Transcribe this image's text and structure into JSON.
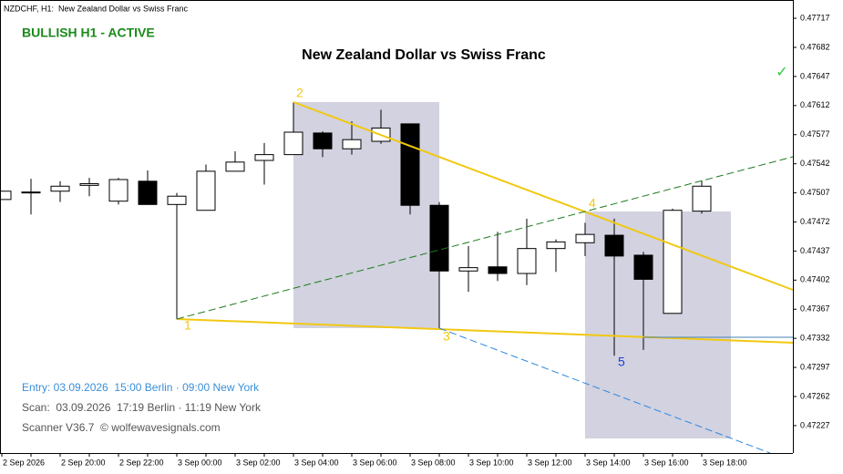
{
  "header": {
    "symbol_title": "NZDCHF, H1:  New Zealand Dollar vs Swiss Franc",
    "status": "BULLISH H1 - ACTIVE",
    "check": "✓"
  },
  "chart_data": {
    "type": "candlestick",
    "title": "New Zealand Dollar vs Swiss Franc",
    "categories": [
      "2 Sep 2026",
      null,
      "2 Sep 20:00",
      null,
      "2 Sep 22:00",
      null,
      "3 Sep 00:00",
      null,
      "3 Sep 02:00",
      null,
      "3 Sep 04:00",
      null,
      "3 Sep 06:00",
      null,
      "3 Sep 08:00",
      null,
      "3 Sep 10:00",
      null,
      "3 Sep 12:00",
      null,
      "3 Sep 14:00",
      null,
      "3 Sep 16:00",
      null,
      "3 Sep 18:00"
    ],
    "open": [
      0.47499,
      0.47508,
      0.47509,
      0.47516,
      0.47497,
      0.47521,
      0.47493,
      0.47486,
      0.47533,
      0.47546,
      0.47553,
      0.47579,
      0.4756,
      0.47569,
      0.4759,
      0.47492,
      0.47413,
      0.47418,
      0.4741,
      0.4744,
      0.47447,
      0.47456,
      0.47432,
      0.47362,
      0.47485
    ],
    "high": [
      0.47509,
      0.47524,
      0.47521,
      0.47525,
      0.47525,
      0.47534,
      0.47507,
      0.47541,
      0.47557,
      0.47567,
      0.47616,
      0.47581,
      0.47593,
      0.47607,
      0.4759,
      0.47496,
      0.47443,
      0.4746,
      0.47476,
      0.47451,
      0.47471,
      0.47476,
      0.47436,
      0.47488,
      0.47522
    ],
    "low": [
      0.47499,
      0.47481,
      0.47496,
      0.47503,
      0.47493,
      0.47493,
      0.47355,
      0.47486,
      0.47533,
      0.47517,
      0.47553,
      0.4755,
      0.47553,
      0.47566,
      0.47481,
      0.47344,
      0.47388,
      0.47401,
      0.47396,
      0.47412,
      0.47431,
      0.47311,
      0.47318,
      0.47362,
      0.47482
    ],
    "close": [
      0.47509,
      0.47508,
      0.47515,
      0.47518,
      0.47523,
      0.47493,
      0.47503,
      0.47533,
      0.47544,
      0.47553,
      0.4758,
      0.4756,
      0.47571,
      0.47585,
      0.47492,
      0.47413,
      0.47417,
      0.4741,
      0.4744,
      0.47448,
      0.47457,
      0.47431,
      0.47403,
      0.47486,
      0.47515
    ],
    "ylim": [
      0.47194,
      0.47739
    ],
    "yticks": [
      0.47717,
      0.47682,
      0.47647,
      0.47612,
      0.47577,
      0.47542,
      0.47507,
      0.47472,
      0.47437,
      0.47402,
      0.47367,
      0.47332,
      0.47297,
      0.47262,
      0.47227
    ],
    "up_color": "#ffffff",
    "down_color": "#000000"
  },
  "wave_labels": [
    "1",
    "2",
    "3",
    "4",
    "5"
  ],
  "footer": {
    "entry": "Entry: 03.09.2026  15:00 Berlin · 09:00 New York",
    "scan": "Scan:  03.09.2026  17:19 Berlin · 11:19 New York",
    "scanner": "Scanner V36.7  © wolfewavesignals.com"
  }
}
